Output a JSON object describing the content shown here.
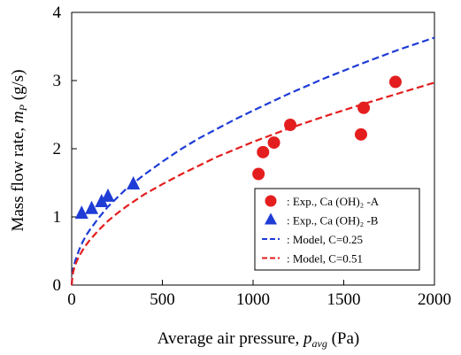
{
  "chart_data": {
    "type": "scatter",
    "xlabel": {
      "main": "Average air pressure, ",
      "var": "p",
      "sub": "avg",
      "unit": " (Pa)"
    },
    "ylabel": {
      "main": "Mass flow rate, ",
      "var": "m",
      "sub": "P",
      "unit": " (g/s)"
    },
    "xlim": [
      0,
      2000
    ],
    "ylim": [
      0,
      4
    ],
    "xticks": [
      0,
      500,
      1000,
      1500,
      2000
    ],
    "yticks": [
      0,
      1,
      2,
      3,
      4
    ],
    "grid": false,
    "legend_position": "bottom-right",
    "series": [
      {
        "name": ": Exp., Ca (OH)₂ -A",
        "kind": "scatter",
        "marker": "circle",
        "color": "#e41e1e",
        "x": [
          1030,
          1055,
          1115,
          1205,
          1595,
          1610,
          1785
        ],
        "y": [
          1.63,
          1.95,
          2.09,
          2.35,
          2.21,
          2.6,
          2.98
        ]
      },
      {
        "name": ": Exp., Ca (OH)₂ -B",
        "kind": "scatter",
        "marker": "triangle",
        "color": "#1f3cd6",
        "x": [
          55,
          110,
          165,
          200,
          340
        ],
        "y": [
          1.05,
          1.12,
          1.22,
          1.3,
          1.48
        ]
      },
      {
        "name": ": Model, C=0.25",
        "kind": "line",
        "dash": true,
        "color": "#1f3cd6",
        "x": [
          0,
          5,
          10,
          20,
          40,
          60,
          80,
          100,
          150,
          200,
          250,
          300,
          400,
          500,
          600,
          700,
          800,
          900,
          1000,
          1200,
          1400,
          1600,
          1800,
          2000
        ],
        "y": [
          0,
          0.18,
          0.26,
          0.36,
          0.51,
          0.63,
          0.73,
          0.81,
          0.99,
          1.15,
          1.28,
          1.41,
          1.62,
          1.81,
          1.99,
          2.15,
          2.29,
          2.43,
          2.56,
          2.81,
          3.04,
          3.25,
          3.45,
          3.63
        ]
      },
      {
        "name": ": Model, C=0.51",
        "kind": "line",
        "dash": true,
        "color": "#e41e1e",
        "x": [
          0,
          5,
          10,
          20,
          40,
          60,
          80,
          100,
          150,
          200,
          250,
          300,
          400,
          500,
          600,
          700,
          800,
          900,
          1000,
          1200,
          1400,
          1600,
          1800,
          2000
        ],
        "y": [
          0,
          0.15,
          0.21,
          0.3,
          0.42,
          0.51,
          0.59,
          0.66,
          0.81,
          0.94,
          1.05,
          1.15,
          1.33,
          1.48,
          1.62,
          1.75,
          1.88,
          1.99,
          2.1,
          2.3,
          2.48,
          2.65,
          2.81,
          2.97
        ]
      }
    ]
  }
}
